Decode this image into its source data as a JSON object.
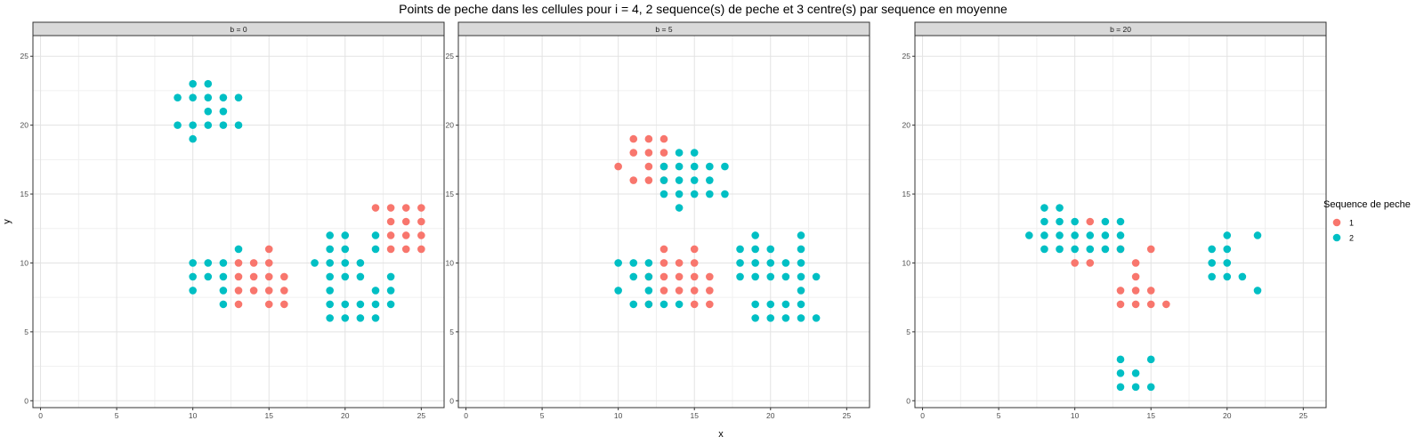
{
  "chart_data": {
    "type": "scatter",
    "title": "Points de peche dans les cellules pour i = 4, 2 sequence(s) de peche et 3 centre(s) par sequence en moyenne",
    "xlabel": "x",
    "ylabel": "y",
    "xlim": [
      -0.5,
      26.5
    ],
    "ylim": [
      -0.5,
      26.5
    ],
    "x_ticks": [
      0,
      5,
      10,
      15,
      20,
      25
    ],
    "y_ticks": [
      0,
      5,
      10,
      15,
      20,
      25
    ],
    "grid": true,
    "legend": {
      "title": "Sequence de peche",
      "position": "right",
      "entries": [
        {
          "label": "1",
          "color": "#F8766D"
        },
        {
          "label": "2",
          "color": "#00BFC4"
        }
      ]
    },
    "panels": [
      {
        "label": "b = 0",
        "series": [
          {
            "name": "1",
            "color": "#F8766D",
            "points": [
              [
                13,
                10
              ],
              [
                14,
                10
              ],
              [
                15,
                11
              ],
              [
                13,
                9
              ],
              [
                14,
                9
              ],
              [
                15,
                10
              ],
              [
                13,
                8
              ],
              [
                14,
                8
              ],
              [
                15,
                9
              ],
              [
                16,
                9
              ],
              [
                13,
                7
              ],
              [
                15,
                8
              ],
              [
                16,
                8
              ],
              [
                15,
                7
              ],
              [
                16,
                7
              ],
              [
                22,
                14
              ],
              [
                23,
                14
              ],
              [
                24,
                14
              ],
              [
                25,
                14
              ],
              [
                23,
                13
              ],
              [
                24,
                13
              ],
              [
                25,
                13
              ],
              [
                23,
                12
              ],
              [
                24,
                12
              ],
              [
                25,
                12
              ],
              [
                23,
                11
              ],
              [
                24,
                11
              ],
              [
                25,
                11
              ]
            ]
          },
          {
            "name": "2",
            "color": "#00BFC4",
            "points": [
              [
                9,
                22
              ],
              [
                10,
                23
              ],
              [
                11,
                23
              ],
              [
                10,
                22
              ],
              [
                11,
                22
              ],
              [
                12,
                22
              ],
              [
                13,
                22
              ],
              [
                11,
                21
              ],
              [
                12,
                21
              ],
              [
                9,
                20
              ],
              [
                10,
                20
              ],
              [
                11,
                20
              ],
              [
                12,
                20
              ],
              [
                13,
                20
              ],
              [
                10,
                19
              ],
              [
                10,
                10
              ],
              [
                11,
                10
              ],
              [
                12,
                10
              ],
              [
                10,
                9
              ],
              [
                11,
                9
              ],
              [
                12,
                9
              ],
              [
                10,
                8
              ],
              [
                12,
                8
              ],
              [
                12,
                7
              ],
              [
                13,
                11
              ],
              [
                18,
                10
              ],
              [
                19,
                10
              ],
              [
                20,
                10
              ],
              [
                21,
                10
              ],
              [
                19,
                12
              ],
              [
                20,
                12
              ],
              [
                19,
                11
              ],
              [
                20,
                11
              ],
              [
                22,
                12
              ],
              [
                22,
                11
              ],
              [
                19,
                9
              ],
              [
                20,
                9
              ],
              [
                21,
                9
              ],
              [
                23,
                9
              ],
              [
                19,
                8
              ],
              [
                22,
                8
              ],
              [
                23,
                8
              ],
              [
                19,
                7
              ],
              [
                20,
                7
              ],
              [
                21,
                7
              ],
              [
                22,
                7
              ],
              [
                23,
                7
              ],
              [
                19,
                6
              ],
              [
                20,
                6
              ],
              [
                21,
                6
              ],
              [
                22,
                6
              ]
            ]
          }
        ]
      },
      {
        "label": "b = 5",
        "series": [
          {
            "name": "1",
            "color": "#F8766D",
            "points": [
              [
                11,
                19
              ],
              [
                12,
                19
              ],
              [
                13,
                19
              ],
              [
                11,
                18
              ],
              [
                12,
                18
              ],
              [
                13,
                18
              ],
              [
                10,
                17
              ],
              [
                12,
                17
              ],
              [
                13,
                17
              ],
              [
                11,
                16
              ],
              [
                12,
                16
              ],
              [
                13,
                16
              ],
              [
                13,
                11
              ],
              [
                15,
                11
              ],
              [
                13,
                10
              ],
              [
                14,
                10
              ],
              [
                15,
                10
              ],
              [
                12,
                9
              ],
              [
                13,
                9
              ],
              [
                14,
                9
              ],
              [
                15,
                9
              ],
              [
                16,
                9
              ],
              [
                13,
                8
              ],
              [
                14,
                8
              ],
              [
                15,
                8
              ],
              [
                16,
                8
              ],
              [
                12,
                7
              ],
              [
                15,
                7
              ],
              [
                16,
                7
              ]
            ]
          },
          {
            "name": "2",
            "color": "#00BFC4",
            "points": [
              [
                14,
                18
              ],
              [
                15,
                18
              ],
              [
                14,
                17
              ],
              [
                15,
                17
              ],
              [
                16,
                17
              ],
              [
                17,
                17
              ],
              [
                13,
                17
              ],
              [
                14,
                16
              ],
              [
                15,
                16
              ],
              [
                16,
                16
              ],
              [
                13,
                16
              ],
              [
                13,
                15
              ],
              [
                14,
                15
              ],
              [
                15,
                15
              ],
              [
                16,
                15
              ],
              [
                17,
                15
              ],
              [
                14,
                14
              ],
              [
                10,
                10
              ],
              [
                11,
                10
              ],
              [
                12,
                10
              ],
              [
                11,
                9
              ],
              [
                12,
                9
              ],
              [
                10,
                8
              ],
              [
                12,
                8
              ],
              [
                11,
                7
              ],
              [
                12,
                7
              ],
              [
                13,
                7
              ],
              [
                14,
                7
              ],
              [
                19,
                12
              ],
              [
                22,
                12
              ],
              [
                18,
                11
              ],
              [
                19,
                11
              ],
              [
                20,
                11
              ],
              [
                22,
                11
              ],
              [
                18,
                10
              ],
              [
                19,
                10
              ],
              [
                20,
                10
              ],
              [
                21,
                10
              ],
              [
                22,
                10
              ],
              [
                18,
                9
              ],
              [
                19,
                9
              ],
              [
                20,
                9
              ],
              [
                21,
                9
              ],
              [
                22,
                9
              ],
              [
                23,
                9
              ],
              [
                22,
                8
              ],
              [
                19,
                7
              ],
              [
                20,
                7
              ],
              [
                21,
                7
              ],
              [
                22,
                7
              ],
              [
                19,
                6
              ],
              [
                20,
                6
              ],
              [
                21,
                6
              ],
              [
                22,
                6
              ],
              [
                23,
                6
              ]
            ]
          }
        ]
      },
      {
        "label": "b = 20",
        "series": [
          {
            "name": "1",
            "color": "#F8766D",
            "points": [
              [
                11,
                13
              ],
              [
                10,
                10
              ],
              [
                11,
                10
              ],
              [
                13,
                11
              ],
              [
                15,
                11
              ],
              [
                14,
                10
              ],
              [
                14,
                9
              ],
              [
                13,
                8
              ],
              [
                14,
                8
              ],
              [
                15,
                8
              ],
              [
                13,
                7
              ],
              [
                14,
                7
              ],
              [
                15,
                7
              ],
              [
                16,
                7
              ]
            ]
          },
          {
            "name": "2",
            "color": "#00BFC4",
            "points": [
              [
                8,
                14
              ],
              [
                9,
                14
              ],
              [
                8,
                13
              ],
              [
                9,
                13
              ],
              [
                7,
                12
              ],
              [
                8,
                12
              ],
              [
                9,
                12
              ],
              [
                10,
                12
              ],
              [
                11,
                12
              ],
              [
                12,
                12
              ],
              [
                13,
                12
              ],
              [
                8,
                11
              ],
              [
                9,
                11
              ],
              [
                10,
                11
              ],
              [
                11,
                11
              ],
              [
                12,
                11
              ],
              [
                13,
                11
              ],
              [
                12,
                13
              ],
              [
                13,
                13
              ],
              [
                10,
                13
              ],
              [
                19,
                11
              ],
              [
                20,
                11
              ],
              [
                19,
                10
              ],
              [
                20,
                10
              ],
              [
                19,
                9
              ],
              [
                20,
                9
              ],
              [
                21,
                9
              ],
              [
                20,
                12
              ],
              [
                22,
                12
              ],
              [
                22,
                8
              ],
              [
                13,
                3
              ],
              [
                15,
                3
              ],
              [
                13,
                2
              ],
              [
                14,
                2
              ],
              [
                13,
                1
              ],
              [
                14,
                1
              ],
              [
                15,
                1
              ]
            ]
          }
        ]
      }
    ]
  }
}
